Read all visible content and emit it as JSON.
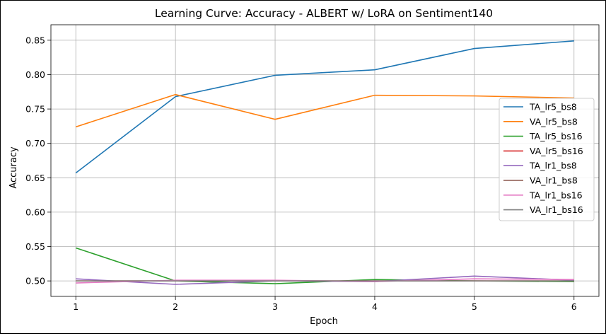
{
  "chart_data": {
    "type": "line",
    "title": "Learning Curve: Accuracy - ALBERT w/ LoRA on Sentiment140",
    "xlabel": "Epoch",
    "ylabel": "Accuracy",
    "x": [
      1,
      2,
      3,
      4,
      5,
      6
    ],
    "xlim": [
      0.75,
      6.25
    ],
    "ylim": [
      0.4775,
      0.8725
    ],
    "xticks": [
      "1",
      "2",
      "3",
      "4",
      "5",
      "6"
    ],
    "yticks": [
      "0.50",
      "0.55",
      "0.60",
      "0.65",
      "0.70",
      "0.75",
      "0.80",
      "0.85"
    ],
    "grid": true,
    "legend_position": "center-right",
    "series": [
      {
        "name": "TA_lr5_bs8",
        "color": "#1f77b4",
        "values": [
          0.657,
          0.768,
          0.799,
          0.807,
          0.838,
          0.849
        ]
      },
      {
        "name": "VA_lr5_bs8",
        "color": "#ff7f0e",
        "values": [
          0.724,
          0.771,
          0.735,
          0.77,
          0.769,
          0.766
        ]
      },
      {
        "name": "TA_lr5_bs16",
        "color": "#2ca02c",
        "values": [
          0.548,
          0.5,
          0.496,
          0.502,
          0.5,
          0.499
        ]
      },
      {
        "name": "VA_lr5_bs16",
        "color": "#d62728",
        "values": [
          0.5,
          0.5,
          0.5,
          0.5,
          0.5,
          0.5
        ]
      },
      {
        "name": "TA_lr1_bs8",
        "color": "#9467bd",
        "values": [
          0.503,
          0.495,
          0.5,
          0.499,
          0.507,
          0.501
        ]
      },
      {
        "name": "VA_lr1_bs8",
        "color": "#8c564b",
        "values": [
          0.5,
          0.5,
          0.5,
          0.5,
          0.5,
          0.5
        ]
      },
      {
        "name": "TA_lr1_bs16",
        "color": "#e377c2",
        "values": [
          0.497,
          0.501,
          0.501,
          0.499,
          0.503,
          0.502
        ]
      },
      {
        "name": "VA_lr1_bs16",
        "color": "#7f7f7f",
        "values": [
          0.5,
          0.5,
          0.5,
          0.5,
          0.5,
          0.5
        ]
      }
    ]
  }
}
